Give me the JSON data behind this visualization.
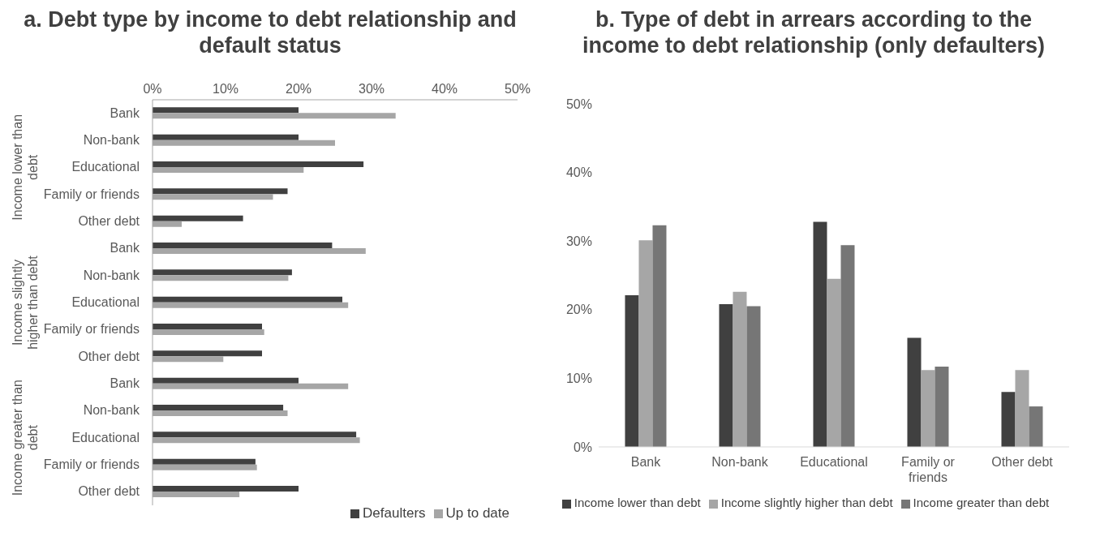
{
  "chart_data": [
    {
      "type": "bar",
      "orientation": "horizontal",
      "title": "a. Debt type by income to debt relationship and default status",
      "categories": [
        "Bank",
        "Non-bank",
        "Educational",
        "Family or friends",
        "Other debt",
        "Bank",
        "Non-bank",
        "Educational",
        "Family or friends",
        "Other debt",
        "Bank",
        "Non-bank",
        "Educational",
        "Family or friends",
        "Other debt"
      ],
      "annotations": [
        "Income lower than debt",
        "Income slightly higher than debt",
        "Income greater than debt"
      ],
      "series": [
        {
          "name": "Defaulters",
          "color": "#404040",
          "values": [
            20.0,
            20.0,
            28.9,
            18.5,
            12.4,
            24.6,
            19.1,
            26.0,
            15.0,
            15.0,
            20.0,
            17.9,
            27.9,
            14.1,
            20.0
          ]
        },
        {
          "name": "Up to date",
          "color": "#a6a6a6",
          "values": [
            33.3,
            25.0,
            20.7,
            16.5,
            4.0,
            29.2,
            18.6,
            26.8,
            15.3,
            9.7,
            26.8,
            18.5,
            28.4,
            14.3,
            11.9
          ]
        }
      ],
      "xlim": [
        0,
        50
      ],
      "xticks": [
        {
          "value": 0,
          "label": "0%"
        },
        {
          "value": 10,
          "label": "10%"
        },
        {
          "value": 20,
          "label": "20%"
        },
        {
          "value": 30,
          "label": "30%"
        },
        {
          "value": 40,
          "label": "40%"
        },
        {
          "value": 50,
          "label": "50%"
        }
      ],
      "grid": false,
      "legend": "bottom right"
    },
    {
      "type": "bar",
      "title": "b. Type of debt in arrears according to the income to debt relationship (only defaulters)",
      "categories": [
        "Bank",
        "Non-bank",
        "Educational",
        "Family or friends",
        "Other debt"
      ],
      "series": [
        {
          "name": "Income lower than debt",
          "color": "#404040",
          "values": [
            22.1,
            20.8,
            32.8,
            15.9,
            8.0
          ]
        },
        {
          "name": "Income slightly higher than debt",
          "color": "#a6a6a6",
          "values": [
            30.1,
            22.6,
            24.5,
            11.2,
            11.2
          ]
        },
        {
          "name": "Income greater than debt",
          "color": "#767676",
          "values": [
            32.3,
            20.5,
            29.4,
            11.7,
            5.9
          ]
        }
      ],
      "ylim": [
        0,
        50
      ],
      "yticks": [
        {
          "value": 0,
          "label": "0%"
        },
        {
          "value": 10,
          "label": "10%"
        },
        {
          "value": 20,
          "label": "20%"
        },
        {
          "value": 30,
          "label": "30%"
        },
        {
          "value": 40,
          "label": "40%"
        },
        {
          "value": 50,
          "label": "50%"
        }
      ],
      "grid": false,
      "legend": "bottom"
    }
  ]
}
